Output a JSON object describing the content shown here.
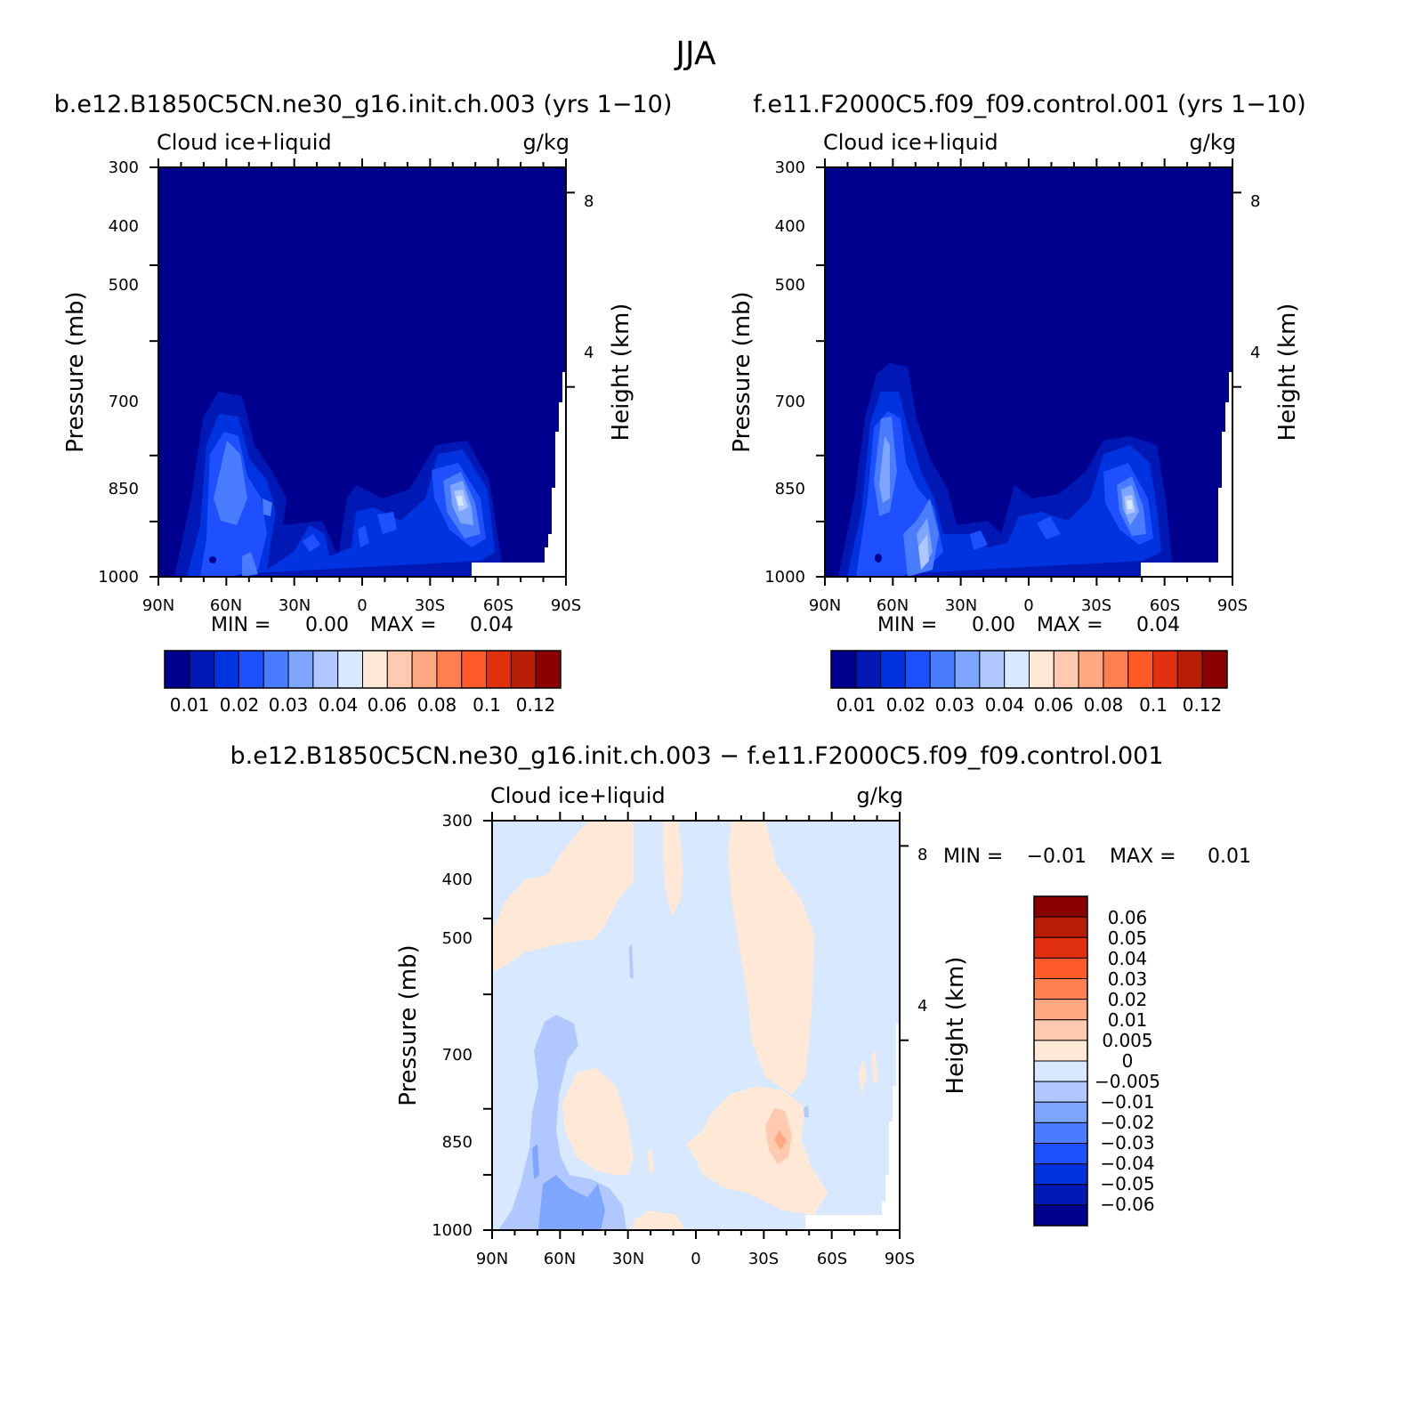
{
  "main_title": "JJA",
  "chart_data": [
    {
      "type": "heatmap",
      "id": "panel1",
      "title": "b.e12.B1850C5CN.ne30_g16.init.ch.003 (yrs 1-10)",
      "left_label": "Cloud ice+liquid",
      "units": "g/kg",
      "ylabel": "Pressure (mb)",
      "ylabel_right": "Height (km)",
      "x_ticks": [
        "90N",
        "60N",
        "30N",
        "0",
        "30S",
        "60S",
        "90S"
      ],
      "y_ticks": [
        "300",
        "400",
        "500",
        "700",
        "850",
        "1000"
      ],
      "y_ticks_right": [
        "8",
        "4"
      ],
      "min_label": "MIN =",
      "min_value": "0.00",
      "max_label": "MAX =",
      "max_value": "0.04",
      "colorbar_labels": [
        "0.01",
        "0.02",
        "0.03",
        "0.04",
        "0.06",
        "0.08",
        "0.1",
        "0.12"
      ]
    },
    {
      "type": "heatmap",
      "id": "panel2",
      "title": "f.e11.F2000C5.f09_f09.control.001 (yrs 1-10)",
      "left_label": "Cloud ice+liquid",
      "units": "g/kg",
      "ylabel": "Pressure (mb)",
      "ylabel_right": "Height (km)",
      "x_ticks": [
        "90N",
        "60N",
        "30N",
        "0",
        "30S",
        "60S",
        "90S"
      ],
      "y_ticks": [
        "300",
        "400",
        "500",
        "700",
        "850",
        "1000"
      ],
      "y_ticks_right": [
        "8",
        "4"
      ],
      "min_label": "MIN =",
      "min_value": "0.00",
      "max_label": "MAX =",
      "max_value": "0.04",
      "colorbar_labels": [
        "0.01",
        "0.02",
        "0.03",
        "0.04",
        "0.06",
        "0.08",
        "0.1",
        "0.12"
      ]
    },
    {
      "type": "heatmap",
      "id": "panel3",
      "title": "b.e12.B1850C5CN.ne30_g16.init.ch.003 - f.e11.F2000C5.f09_f09.control.001",
      "left_label": "Cloud ice+liquid",
      "units": "g/kg",
      "ylabel": "Pressure (mb)",
      "ylabel_right": "Height (km)",
      "x_ticks": [
        "90N",
        "60N",
        "30N",
        "0",
        "30S",
        "60S",
        "90S"
      ],
      "y_ticks": [
        "300",
        "400",
        "500",
        "700",
        "850",
        "1000"
      ],
      "y_ticks_right": [
        "8",
        "4"
      ],
      "min_label": "MIN =",
      "min_value": "-0.01",
      "max_label": "MAX =",
      "max_value": "0.01",
      "colorbar_labels": [
        "0.06",
        "0.05",
        "0.04",
        "0.03",
        "0.02",
        "0.01",
        "0.005",
        "0",
        "-0.005",
        "-0.01",
        "-0.02",
        "-0.03",
        "-0.04",
        "-0.05",
        "-0.06"
      ]
    }
  ],
  "colors": {
    "seq": [
      "#00008f",
      "#0019b5",
      "#0033e0",
      "#1e50ff",
      "#4a7cff",
      "#7ea6ff",
      "#b0c8ff",
      "#d8e8ff",
      "#ffe8d6",
      "#ffcab0",
      "#ffa882",
      "#ff7f50",
      "#ff5a28",
      "#e03010",
      "#b81e05",
      "#8a0000"
    ],
    "div": [
      "#8a0000",
      "#b81e05",
      "#e03010",
      "#ff5a28",
      "#ff7f50",
      "#ffa882",
      "#ffcab0",
      "#ffe8d6",
      "#d8e8ff",
      "#b0c8ff",
      "#7ea6ff",
      "#4a7cff",
      "#1e50ff",
      "#0033e0",
      "#0019b5",
      "#00008f"
    ]
  }
}
